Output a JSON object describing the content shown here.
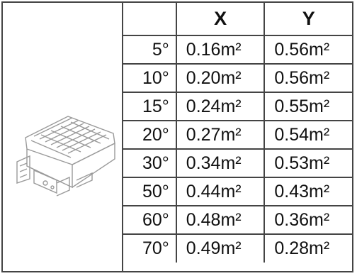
{
  "table": {
    "headers": [
      "",
      "X",
      "Y"
    ],
    "rows": [
      {
        "angle": "5°",
        "x": "0.16m²",
        "y": "0.56m²"
      },
      {
        "angle": "10°",
        "x": "0.20m²",
        "y": "0.56m²"
      },
      {
        "angle": "15°",
        "x": "0.24m²",
        "y": "0.55m²"
      },
      {
        "angle": "20°",
        "x": "0.27m²",
        "y": "0.54m²"
      },
      {
        "angle": "30°",
        "x": "0.34m²",
        "y": "0.53m²"
      },
      {
        "angle": "50°",
        "x": "0.44m²",
        "y": "0.43m²"
      },
      {
        "angle": "60°",
        "x": "0.48m²",
        "y": "0.36m²"
      },
      {
        "angle": "70°",
        "x": "0.49m²",
        "y": "0.28m²"
      }
    ]
  },
  "illustration": {
    "icon": "floodlight-fixture-icon",
    "color": "#9a9a9a"
  }
}
